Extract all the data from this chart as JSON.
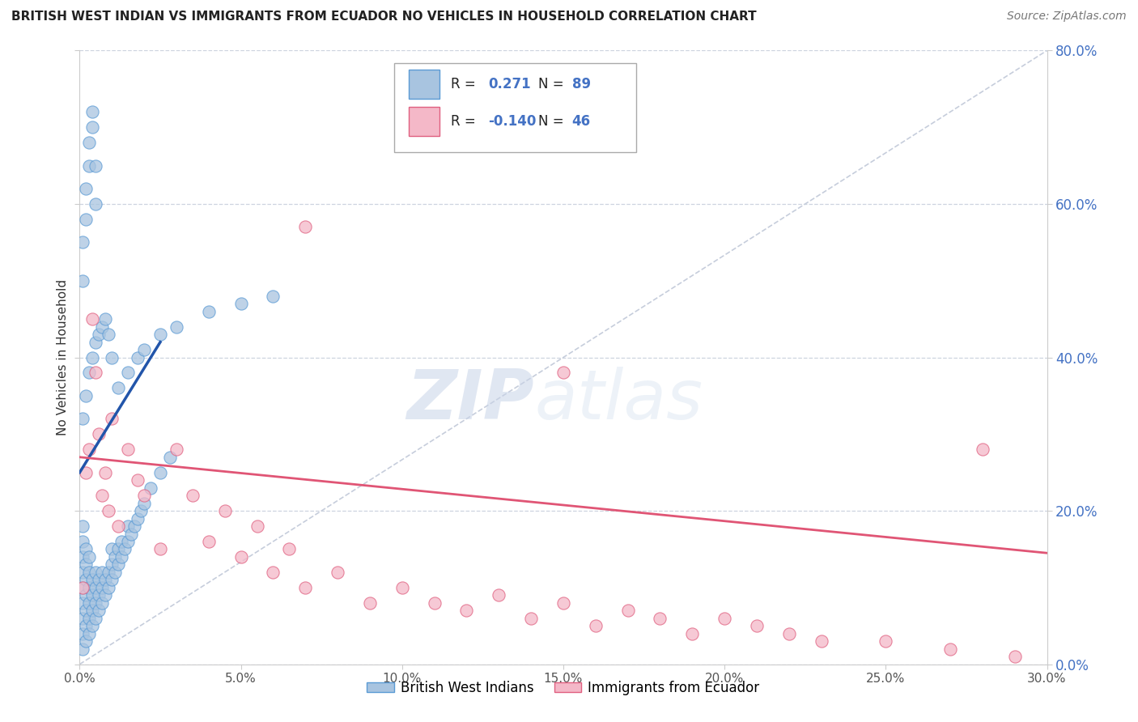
{
  "title": "BRITISH WEST INDIAN VS IMMIGRANTS FROM ECUADOR NO VEHICLES IN HOUSEHOLD CORRELATION CHART",
  "source": "Source: ZipAtlas.com",
  "ylabel": "No Vehicles in Household",
  "legend_label1": "British West Indians",
  "legend_label2": "Immigrants from Ecuador",
  "x_min": 0.0,
  "x_max": 0.3,
  "y_min": 0.0,
  "y_max": 0.8,
  "R1": 0.271,
  "N1": 89,
  "R2": -0.14,
  "N2": 46,
  "color_blue_fill": "#a8c4e0",
  "color_blue_edge": "#5b9bd5",
  "color_pink_fill": "#f4b8c8",
  "color_pink_edge": "#e06080",
  "color_blue_line": "#2255aa",
  "color_pink_line": "#e05575",
  "color_diag_line": "#c0c8d8",
  "watermark_zip": "ZIP",
  "watermark_atlas": "atlas",
  "blue_x": [
    0.001,
    0.001,
    0.001,
    0.001,
    0.001,
    0.001,
    0.001,
    0.001,
    0.001,
    0.002,
    0.002,
    0.002,
    0.002,
    0.002,
    0.002,
    0.002,
    0.003,
    0.003,
    0.003,
    0.003,
    0.003,
    0.003,
    0.004,
    0.004,
    0.004,
    0.004,
    0.005,
    0.005,
    0.005,
    0.005,
    0.006,
    0.006,
    0.006,
    0.007,
    0.007,
    0.007,
    0.008,
    0.008,
    0.009,
    0.009,
    0.01,
    0.01,
    0.01,
    0.011,
    0.011,
    0.012,
    0.012,
    0.013,
    0.013,
    0.014,
    0.015,
    0.015,
    0.016,
    0.017,
    0.018,
    0.019,
    0.02,
    0.022,
    0.025,
    0.028,
    0.001,
    0.001,
    0.002,
    0.002,
    0.003,
    0.003,
    0.004,
    0.004,
    0.005,
    0.005,
    0.001,
    0.002,
    0.003,
    0.004,
    0.005,
    0.006,
    0.007,
    0.008,
    0.009,
    0.01,
    0.012,
    0.015,
    0.018,
    0.02,
    0.025,
    0.03,
    0.04,
    0.05,
    0.06
  ],
  "blue_y": [
    0.02,
    0.04,
    0.06,
    0.08,
    0.1,
    0.12,
    0.14,
    0.16,
    0.18,
    0.03,
    0.05,
    0.07,
    0.09,
    0.11,
    0.13,
    0.15,
    0.04,
    0.06,
    0.08,
    0.1,
    0.12,
    0.14,
    0.05,
    0.07,
    0.09,
    0.11,
    0.06,
    0.08,
    0.1,
    0.12,
    0.07,
    0.09,
    0.11,
    0.08,
    0.1,
    0.12,
    0.09,
    0.11,
    0.1,
    0.12,
    0.11,
    0.13,
    0.15,
    0.12,
    0.14,
    0.13,
    0.15,
    0.14,
    0.16,
    0.15,
    0.16,
    0.18,
    0.17,
    0.18,
    0.19,
    0.2,
    0.21,
    0.23,
    0.25,
    0.27,
    0.5,
    0.55,
    0.58,
    0.62,
    0.65,
    0.68,
    0.7,
    0.72,
    0.65,
    0.6,
    0.32,
    0.35,
    0.38,
    0.4,
    0.42,
    0.43,
    0.44,
    0.45,
    0.43,
    0.4,
    0.36,
    0.38,
    0.4,
    0.41,
    0.43,
    0.44,
    0.46,
    0.47,
    0.48
  ],
  "pink_x": [
    0.001,
    0.002,
    0.003,
    0.004,
    0.005,
    0.006,
    0.007,
    0.008,
    0.009,
    0.01,
    0.012,
    0.015,
    0.018,
    0.02,
    0.025,
    0.03,
    0.035,
    0.04,
    0.045,
    0.05,
    0.055,
    0.06,
    0.065,
    0.07,
    0.08,
    0.09,
    0.1,
    0.11,
    0.12,
    0.13,
    0.14,
    0.15,
    0.16,
    0.17,
    0.18,
    0.19,
    0.2,
    0.21,
    0.22,
    0.23,
    0.25,
    0.27,
    0.29,
    0.07,
    0.15,
    0.28
  ],
  "pink_y": [
    0.1,
    0.25,
    0.28,
    0.45,
    0.38,
    0.3,
    0.22,
    0.25,
    0.2,
    0.32,
    0.18,
    0.28,
    0.24,
    0.22,
    0.15,
    0.28,
    0.22,
    0.16,
    0.2,
    0.14,
    0.18,
    0.12,
    0.15,
    0.1,
    0.12,
    0.08,
    0.1,
    0.08,
    0.07,
    0.09,
    0.06,
    0.08,
    0.05,
    0.07,
    0.06,
    0.04,
    0.06,
    0.05,
    0.04,
    0.03,
    0.03,
    0.02,
    0.01,
    0.57,
    0.38,
    0.28
  ],
  "blue_trend_x0": 0.0,
  "blue_trend_y0": 0.25,
  "blue_trend_x1": 0.025,
  "blue_trend_y1": 0.42,
  "pink_trend_x0": 0.0,
  "pink_trend_y0": 0.27,
  "pink_trend_x1": 0.3,
  "pink_trend_y1": 0.145
}
